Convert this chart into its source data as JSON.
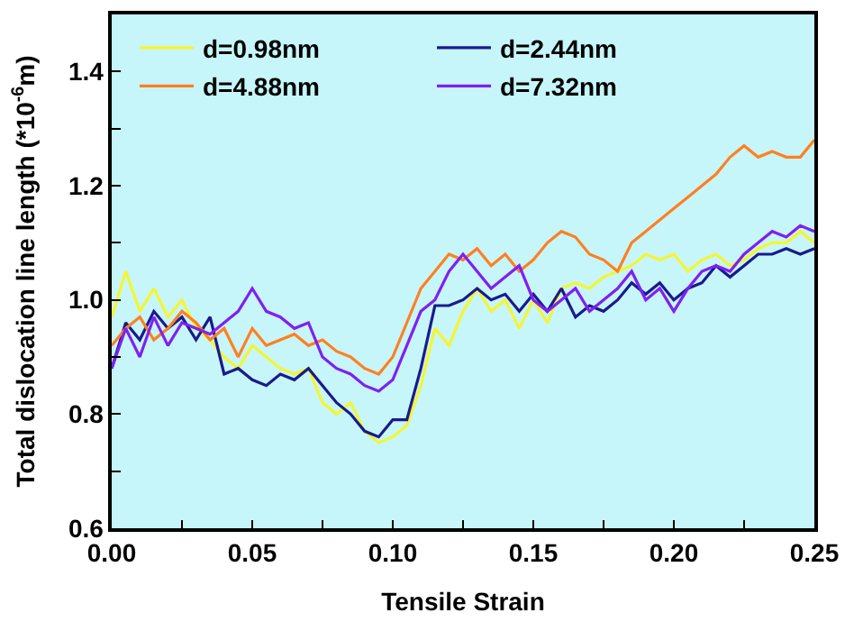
{
  "chart_data": {
    "type": "line",
    "xlabel": "Tensile Strain",
    "ylabel": "Total dislocation line length (*10$^{-6}$m)",
    "x": [
      0,
      0.005,
      0.01,
      0.015,
      0.02,
      0.025,
      0.03,
      0.035,
      0.04,
      0.045,
      0.05,
      0.055,
      0.06,
      0.065,
      0.07,
      0.075,
      0.08,
      0.085,
      0.09,
      0.095,
      0.1,
      0.105,
      0.11,
      0.115,
      0.12,
      0.125,
      0.13,
      0.135,
      0.14,
      0.145,
      0.15,
      0.155,
      0.16,
      0.165,
      0.17,
      0.175,
      0.18,
      0.185,
      0.19,
      0.195,
      0.2,
      0.205,
      0.21,
      0.215,
      0.22,
      0.225,
      0.23,
      0.235,
      0.24,
      0.245,
      0.25
    ],
    "series": [
      {
        "name": "d=0.98nm",
        "color": "#f5f530",
        "values": [
          0.97,
          1.05,
          0.98,
          1.02,
          0.97,
          1.0,
          0.95,
          0.93,
          0.9,
          0.88,
          0.92,
          0.9,
          0.88,
          0.87,
          0.88,
          0.82,
          0.8,
          0.82,
          0.77,
          0.75,
          0.76,
          0.78,
          0.85,
          0.95,
          0.92,
          0.98,
          1.02,
          0.98,
          1.0,
          0.95,
          1.0,
          0.96,
          1.02,
          1.03,
          1.02,
          1.04,
          1.05,
          1.06,
          1.08,
          1.07,
          1.08,
          1.05,
          1.07,
          1.08,
          1.06,
          1.07,
          1.09,
          1.1,
          1.1,
          1.12,
          1.1
        ]
      },
      {
        "name": "d=2.44nm",
        "color": "#1a1a8c",
        "values": [
          0.88,
          0.96,
          0.93,
          0.98,
          0.95,
          0.97,
          0.93,
          0.97,
          0.87,
          0.88,
          0.86,
          0.85,
          0.87,
          0.86,
          0.88,
          0.85,
          0.82,
          0.8,
          0.77,
          0.76,
          0.79,
          0.79,
          0.88,
          0.99,
          0.99,
          1.0,
          1.02,
          1.0,
          1.01,
          0.98,
          1.01,
          0.98,
          1.02,
          0.97,
          0.99,
          0.98,
          1.0,
          1.03,
          1.01,
          1.03,
          1.0,
          1.02,
          1.03,
          1.06,
          1.04,
          1.06,
          1.08,
          1.08,
          1.09,
          1.08,
          1.09
        ]
      },
      {
        "name": "d=4.88nm",
        "color": "#ff8020",
        "values": [
          0.92,
          0.95,
          0.97,
          0.93,
          0.95,
          0.98,
          0.96,
          0.93,
          0.95,
          0.9,
          0.95,
          0.92,
          0.93,
          0.94,
          0.92,
          0.93,
          0.91,
          0.9,
          0.88,
          0.87,
          0.9,
          0.96,
          1.02,
          1.05,
          1.08,
          1.07,
          1.09,
          1.06,
          1.08,
          1.05,
          1.07,
          1.1,
          1.12,
          1.11,
          1.08,
          1.07,
          1.05,
          1.1,
          1.12,
          1.14,
          1.16,
          1.18,
          1.2,
          1.22,
          1.25,
          1.27,
          1.25,
          1.26,
          1.25,
          1.25,
          1.28
        ]
      },
      {
        "name": "d=7.32nm",
        "color": "#8020f0",
        "values": [
          0.88,
          0.95,
          0.9,
          0.97,
          0.92,
          0.96,
          0.95,
          0.94,
          0.96,
          0.98,
          1.02,
          0.98,
          0.97,
          0.95,
          0.96,
          0.9,
          0.88,
          0.87,
          0.85,
          0.84,
          0.86,
          0.92,
          0.98,
          1.0,
          1.05,
          1.08,
          1.05,
          1.02,
          1.04,
          1.06,
          1.0,
          0.98,
          1.0,
          1.02,
          0.98,
          1.0,
          1.02,
          1.05,
          1.0,
          1.02,
          0.98,
          1.02,
          1.05,
          1.06,
          1.05,
          1.08,
          1.1,
          1.12,
          1.11,
          1.13,
          1.12
        ]
      }
    ],
    "xlim": [
      0,
      0.25
    ],
    "xticks": [
      {
        "value": 0,
        "label": "0.00"
      },
      {
        "value": 0.025,
        "label": null
      },
      0.05,
      {
        "value": 0.075,
        "label": null
      },
      {
        "value": 0.1,
        "label": "0.10"
      },
      {
        "value": 0.125,
        "label": null
      },
      0.15,
      {
        "value": 0.175,
        "label": null
      },
      {
        "value": 0.2,
        "label": "0.20"
      },
      {
        "value": 0.225,
        "label": null
      },
      0.25
    ],
    "ylim": [
      0.6,
      1.5
    ],
    "yticks": [
      0.6,
      {
        "value": 0.7,
        "label": null
      },
      0.8,
      {
        "value": 0.9,
        "label": null
      },
      {
        "value": 1,
        "label": "1.0"
      },
      {
        "value": 1.1,
        "label": null
      },
      1.2,
      {
        "value": 1.3,
        "label": null
      },
      1.4
    ],
    "grid": false,
    "legend": "top",
    "marker": "none",
    "line_style": "solid"
  }
}
